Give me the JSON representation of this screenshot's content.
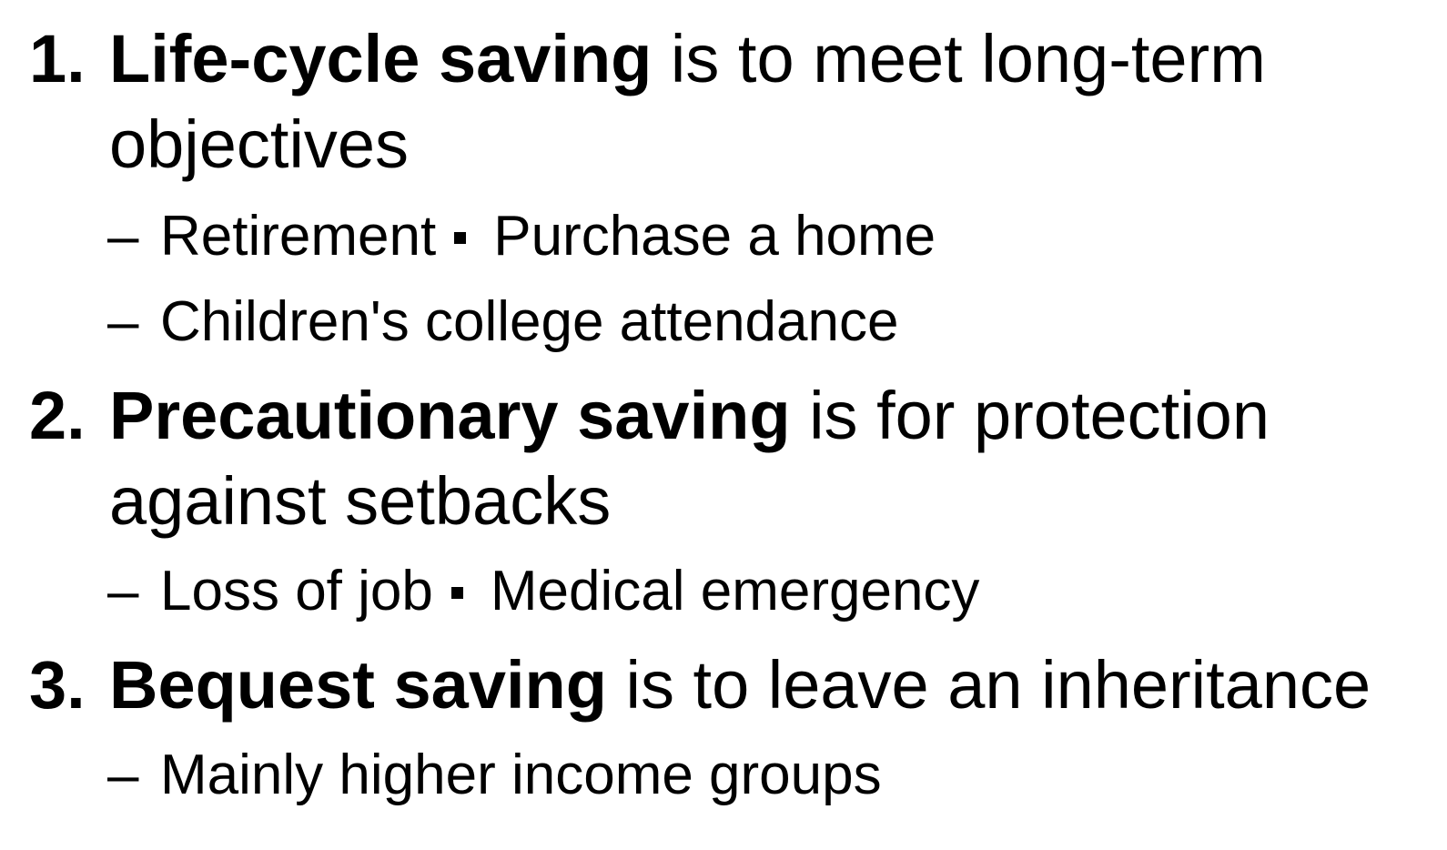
{
  "items": [
    {
      "number": "1.",
      "term": "Life-cycle saving",
      "desc_line1": " is to meet long-term",
      "desc_line2": "objectives",
      "subitems": [
        {
          "a": "Retirement",
          "b": "Purchase a home"
        },
        {
          "a": "Children's college attendance"
        }
      ]
    },
    {
      "number": "2.",
      "term": "Precautionary saving",
      "desc_line1": " is for protection",
      "desc_line2": "against setbacks",
      "subitems": [
        {
          "a": "Loss of job",
          "b": "Medical emergency"
        }
      ]
    },
    {
      "number": "3.",
      "term": "Bequest saving",
      "desc_line1": " is to leave an inheritance",
      "subitems": [
        {
          "a": "Mainly higher income groups"
        }
      ]
    }
  ],
  "dash": "–"
}
